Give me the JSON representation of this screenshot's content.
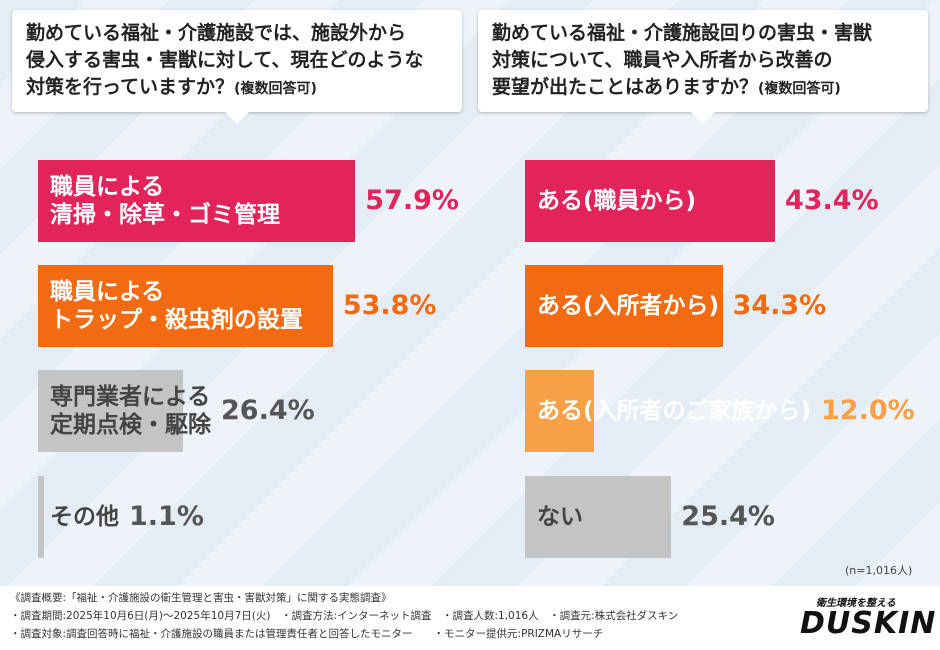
{
  "chart_data": [
    {
      "type": "bar",
      "orientation": "horizontal",
      "title": "勤めている福祉・介護施設では、施設外から\n侵入する害虫・害獣に対して、現在どのような\n対策を行っていますか？",
      "subtitle": "(複数回答可)",
      "categories": [
        "職員による\n清掃・除草・ゴミ管理",
        "職員による\nトラップ・殺虫剤の設置",
        "専門業者による\n定期点検・駆除",
        "その他"
      ],
      "values": [
        57.9,
        53.8,
        26.4,
        1.1
      ],
      "value_labels": [
        "57.9%",
        "53.8%",
        "26.4%",
        "1.1%"
      ],
      "colors": [
        "#e3245a",
        "#f26b12",
        "#c4c4c4",
        "#c4c4c4"
      ],
      "label_colors": [
        "#ffffff",
        "#ffffff",
        "#444444",
        "#444444"
      ],
      "value_colors": [
        "#e3245a",
        "#f26b12",
        "#555555",
        "#555555"
      ]
    },
    {
      "type": "bar",
      "orientation": "horizontal",
      "title": "勤めている福祉・介護施設回りの害虫・害獣\n対策について、職員や入所者から改善の\n要望が出たことはありますか？",
      "subtitle": "(複数回答可)",
      "categories": [
        "ある(職員から)",
        "ある(入所者から)",
        "ある(入所者のご家族から)",
        "ない"
      ],
      "values": [
        43.4,
        34.3,
        12.0,
        25.4
      ],
      "value_labels": [
        "43.4%",
        "34.3%",
        "12.0%",
        "25.4%"
      ],
      "colors": [
        "#e3245a",
        "#f26b12",
        "#f7a045",
        "#c4c4c4"
      ],
      "label_colors": [
        "#ffffff",
        "#ffffff",
        "#ffffff",
        "#444444"
      ],
      "value_colors": [
        "#e3245a",
        "#f26b12",
        "#f7a045",
        "#555555"
      ]
    }
  ],
  "sample_note": "(n=1,016人)",
  "footer": {
    "lines": [
      "《調査概要:「福祉・介護施設の衛生管理と害虫・害獣対策」に関する実態調査》",
      "・調査期間:2025年10月6日(月)〜2025年10月7日(火)　・調査方法:インターネット調査　・調査人数:1,016人　・調査元:株式会社ダスキン",
      "・調査対象:調査回答時に福祉・介護施設の職員または管理責任者と回答したモニター　　・モニター提供元:PRIZMAリサーチ"
    ],
    "logo_tagline": "衛生環境を整える",
    "logo": "DUSKIN"
  }
}
